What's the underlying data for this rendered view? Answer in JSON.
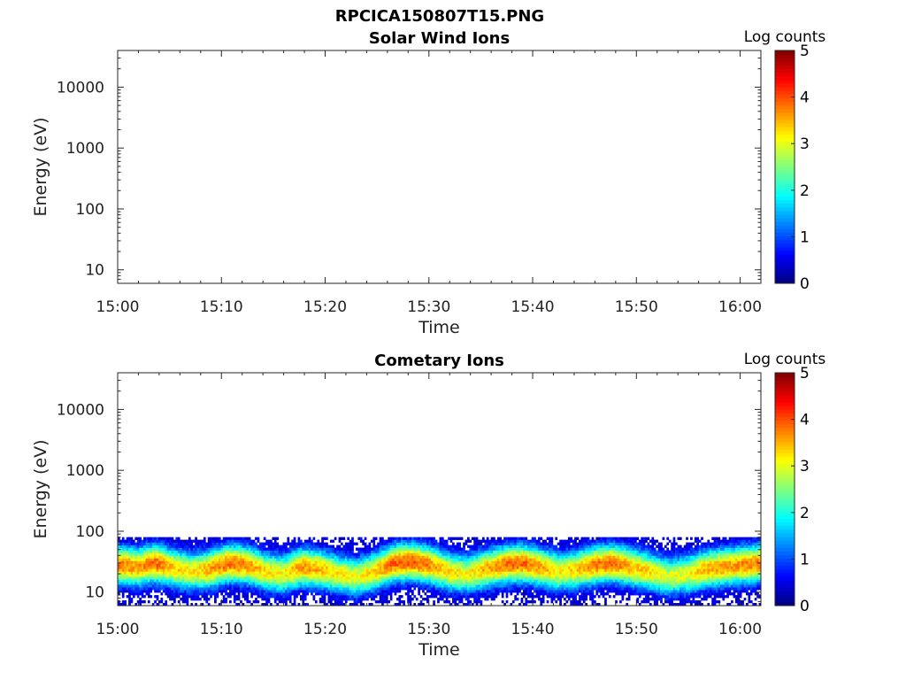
{
  "figure_title": "RPCICA150807T15.PNG",
  "chart_data": [
    {
      "type": "heatmap",
      "title": "Solar Wind Ions",
      "xlabel": "Time",
      "ylabel": "Energy (eV)",
      "x_ticks": [
        "15:00",
        "15:10",
        "15:20",
        "15:30",
        "15:40",
        "15:50",
        "16:00"
      ],
      "y_ticks": [
        "10",
        "100",
        "1000",
        "10000"
      ],
      "y_scale": "log",
      "ylim": [
        6,
        40000
      ],
      "colorbar": {
        "label": "Log counts",
        "ticks": [
          "0",
          "1",
          "2",
          "3",
          "4",
          "5"
        ],
        "range": [
          0,
          5
        ],
        "colormap": "jet"
      },
      "data": []
    },
    {
      "type": "heatmap",
      "title": "Cometary Ions",
      "xlabel": "Time",
      "ylabel": "Energy (eV)",
      "x_ticks": [
        "15:00",
        "15:10",
        "15:20",
        "15:30",
        "15:40",
        "15:50",
        "16:00"
      ],
      "y_ticks": [
        "10",
        "100",
        "1000",
        "10000"
      ],
      "y_scale": "log",
      "ylim": [
        6,
        40000
      ],
      "colorbar": {
        "label": "Log counts",
        "ticks": [
          "0",
          "1",
          "2",
          "3",
          "4",
          "5"
        ],
        "range": [
          0,
          5
        ],
        "colormap": "jet"
      },
      "energy_range_eV": [
        6,
        80
      ],
      "band_peak_energy_eV": [
        28,
        26,
        30,
        25,
        22,
        24,
        30,
        28,
        22,
        20,
        26,
        24,
        20,
        18,
        22,
        30,
        32,
        28,
        22,
        20,
        24,
        28,
        30,
        26,
        22,
        24,
        28,
        30,
        26,
        22,
        18,
        20,
        24,
        26,
        28,
        30
      ],
      "band_peak_log_counts": [
        3.8,
        3.6,
        3.9,
        3.4,
        3.2,
        3.6,
        3.9,
        3.7,
        3.3,
        3.1,
        3.7,
        3.5,
        3.2,
        3.0,
        3.4,
        3.9,
        4.0,
        3.7,
        3.3,
        3.1,
        3.5,
        3.8,
        3.9,
        3.6,
        3.2,
        3.4,
        3.8,
        3.9,
        3.5,
        3.3,
        2.9,
        3.1,
        3.5,
        3.6,
        3.7,
        3.8
      ]
    }
  ]
}
